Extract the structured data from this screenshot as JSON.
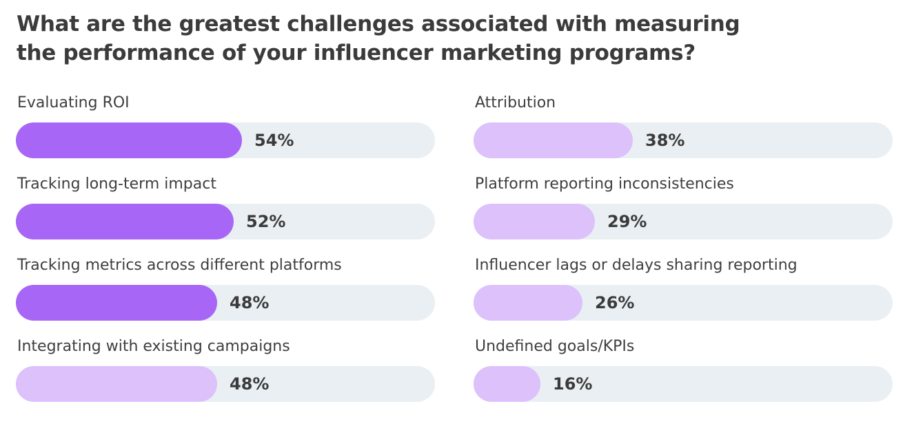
{
  "chart_data": {
    "type": "bar",
    "orientation": "horizontal",
    "title": "What are the greatest challenges associated with measuring the performance of your influencer marketing programs?",
    "title_lines": [
      "What are the greatest challenges associated with measuring",
      "the performance of your influencer marketing programs?"
    ],
    "xlim": [
      0,
      100
    ],
    "unit": "%",
    "colors": {
      "strong": "#a766f5",
      "light": "#dcc1fb",
      "track": "#e9eff3"
    },
    "columns": [
      {
        "items": [
          {
            "label": "Evaluating ROI",
            "value": 54,
            "value_label": "54%",
            "tone": "strong"
          },
          {
            "label": "Tracking long-term impact",
            "value": 52,
            "value_label": "52%",
            "tone": "strong"
          },
          {
            "label": "Tracking metrics across different platforms",
            "value": 48,
            "value_label": "48%",
            "tone": "strong"
          },
          {
            "label": "Integrating with existing campaigns",
            "value": 48,
            "value_label": "48%",
            "tone": "light"
          }
        ]
      },
      {
        "items": [
          {
            "label": "Attribution",
            "value": 38,
            "value_label": "38%",
            "tone": "light"
          },
          {
            "label": "Platform reporting inconsistencies",
            "value": 29,
            "value_label": "29%",
            "tone": "light"
          },
          {
            "label": "Influencer lags or delays sharing reporting",
            "value": 26,
            "value_label": "26%",
            "tone": "light"
          },
          {
            "label": "Undefined goals/KPIs",
            "value": 16,
            "value_label": "16%",
            "tone": "light"
          }
        ]
      }
    ]
  }
}
